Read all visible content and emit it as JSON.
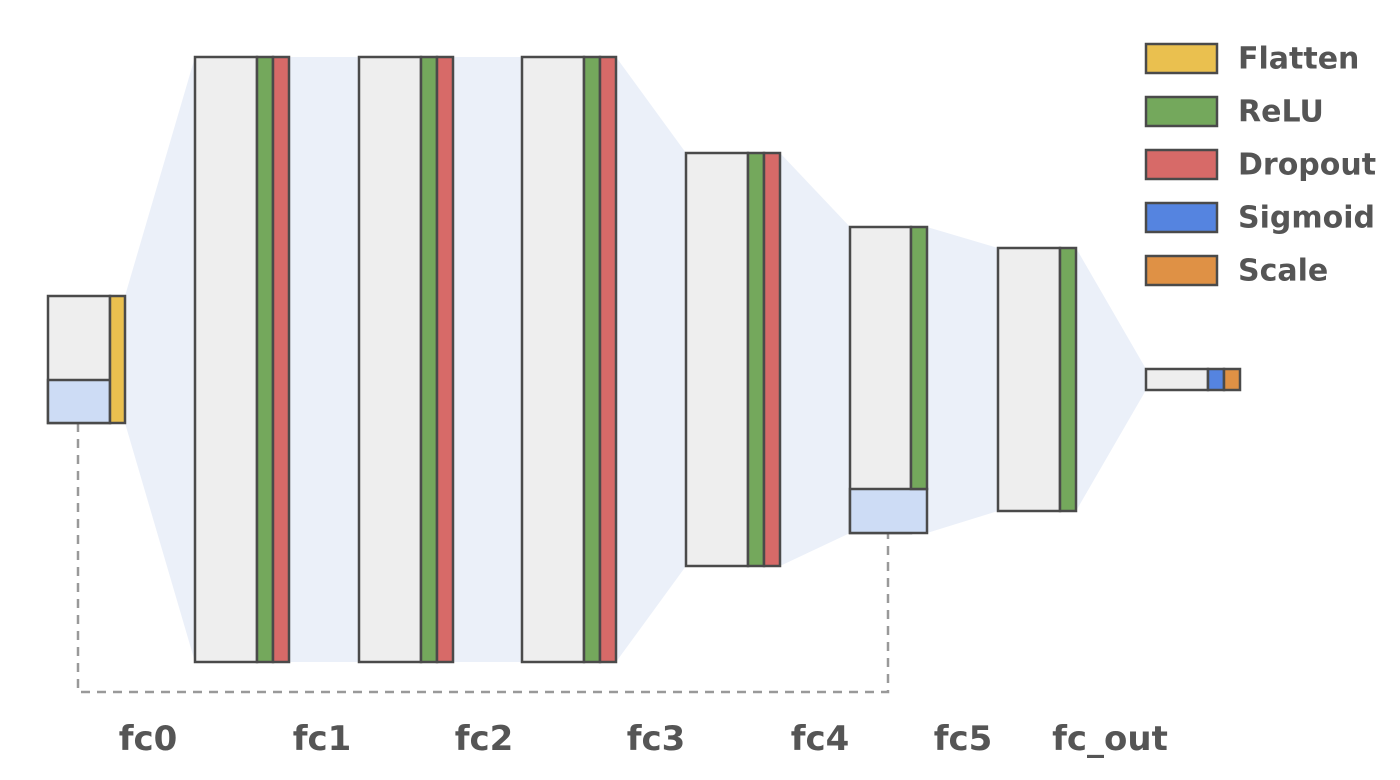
{
  "layers": [
    "fc0",
    "fc1",
    "fc2",
    "fc3",
    "fc4",
    "fc5",
    "fc_out"
  ],
  "legend": [
    {
      "label": "Flatten",
      "color": "#eac04f"
    },
    {
      "label": "ReLU",
      "color": "#74a85c"
    },
    {
      "label": "Dropout",
      "color": "#d76a68"
    },
    {
      "label": "Sigmoid",
      "color": "#5584e0"
    },
    {
      "label": "Scale",
      "color": "#df9145"
    }
  ]
}
